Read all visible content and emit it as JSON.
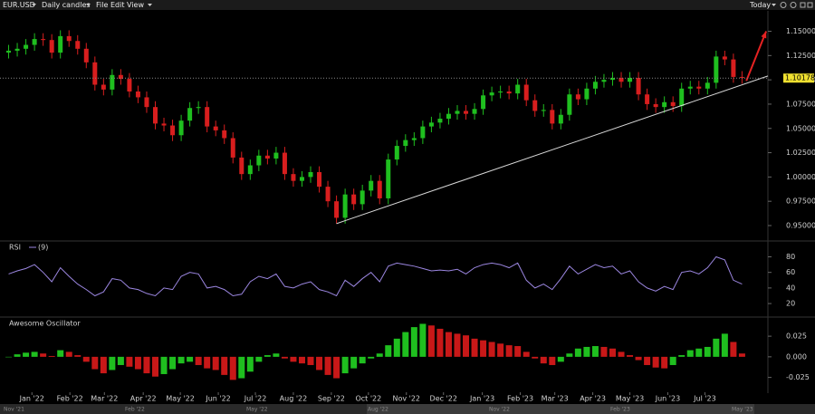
{
  "toolbar": {
    "symbol": "EUR.USD",
    "timeframe": "Daily candles",
    "menu": [
      "File",
      "Edit",
      "View"
    ],
    "today": "Today"
  },
  "chart_data": [
    {
      "type": "candlestick",
      "open": [
        1.128,
        1.13,
        1.132,
        1.136,
        1.142,
        1.141,
        1.128,
        1.145,
        1.14,
        1.132,
        1.118,
        1.095,
        1.09,
        1.105,
        1.101,
        1.088,
        1.082,
        1.072,
        1.055,
        1.053,
        1.043,
        1.058,
        1.071,
        1.072,
        1.052,
        1.048,
        1.04,
        1.02,
        1.003,
        1.012,
        1.022,
        1.019,
        1.025,
        1.003,
        0.996,
        1.0,
        1.005,
        0.99,
        0.975,
        0.958,
        0.982,
        0.972,
        0.986,
        0.996,
        0.978,
        1.018,
        1.032,
        1.038,
        1.04,
        1.052,
        1.056,
        1.06,
        1.065,
        1.068,
        1.065,
        1.07,
        1.084,
        1.087,
        1.088,
        1.086,
        1.095,
        1.079,
        1.068,
        1.069,
        1.055,
        1.064,
        1.085,
        1.08,
        1.091,
        1.098,
        1.1,
        1.102,
        1.098,
        1.102,
        1.085,
        1.075,
        1.072,
        1.077,
        1.073,
        1.091,
        1.093,
        1.091,
        1.097,
        1.124,
        1.121,
        1.103
      ],
      "high": [
        1.136,
        1.138,
        1.142,
        1.148,
        1.148,
        1.147,
        1.151,
        1.151,
        1.146,
        1.138,
        1.124,
        1.101,
        1.111,
        1.111,
        1.107,
        1.094,
        1.088,
        1.078,
        1.061,
        1.059,
        1.064,
        1.077,
        1.078,
        1.078,
        1.058,
        1.054,
        1.046,
        1.026,
        1.018,
        1.028,
        1.028,
        1.031,
        1.031,
        1.009,
        1.006,
        1.011,
        1.011,
        0.996,
        0.981,
        0.988,
        0.988,
        0.992,
        1.002,
        1.002,
        1.024,
        1.038,
        1.044,
        1.046,
        1.058,
        1.062,
        1.066,
        1.071,
        1.074,
        1.074,
        1.076,
        1.09,
        1.093,
        1.094,
        1.094,
        1.101,
        1.101,
        1.085,
        1.075,
        1.075,
        1.07,
        1.091,
        1.091,
        1.097,
        1.104,
        1.106,
        1.108,
        1.108,
        1.108,
        1.108,
        1.091,
        1.081,
        1.083,
        1.083,
        1.097,
        1.099,
        1.099,
        1.103,
        1.13,
        1.13,
        1.127,
        1.109
      ],
      "low": [
        1.122,
        1.124,
        1.126,
        1.13,
        1.135,
        1.122,
        1.122,
        1.134,
        1.126,
        1.112,
        1.089,
        1.084,
        1.084,
        1.095,
        1.082,
        1.076,
        1.066,
        1.049,
        1.047,
        1.037,
        1.037,
        1.052,
        1.065,
        1.046,
        1.042,
        1.034,
        1.014,
        0.997,
        0.997,
        1.006,
        1.013,
        1.013,
        0.997,
        0.99,
        0.99,
        0.994,
        0.984,
        0.969,
        0.952,
        0.952,
        0.966,
        0.966,
        0.98,
        0.972,
        0.972,
        1.012,
        1.026,
        1.032,
        1.034,
        1.046,
        1.05,
        1.054,
        1.059,
        1.059,
        1.059,
        1.064,
        1.078,
        1.081,
        1.08,
        1.08,
        1.073,
        1.062,
        1.062,
        1.049,
        1.049,
        1.058,
        1.074,
        1.074,
        1.085,
        1.092,
        1.094,
        1.092,
        1.092,
        1.079,
        1.069,
        1.066,
        1.066,
        1.067,
        1.067,
        1.085,
        1.085,
        1.085,
        1.091,
        1.115,
        1.097,
        1.096
      ],
      "close": [
        1.13,
        1.132,
        1.136,
        1.142,
        1.141,
        1.128,
        1.145,
        1.14,
        1.132,
        1.118,
        1.095,
        1.09,
        1.105,
        1.101,
        1.088,
        1.082,
        1.072,
        1.055,
        1.053,
        1.043,
        1.058,
        1.071,
        1.072,
        1.052,
        1.048,
        1.04,
        1.02,
        1.003,
        1.012,
        1.022,
        1.019,
        1.025,
        1.003,
        0.996,
        1.0,
        1.005,
        0.99,
        0.975,
        0.958,
        0.982,
        0.972,
        0.986,
        0.996,
        0.978,
        1.018,
        1.032,
        1.038,
        1.04,
        1.052,
        1.056,
        1.06,
        1.065,
        1.068,
        1.065,
        1.07,
        1.084,
        1.087,
        1.088,
        1.086,
        1.095,
        1.079,
        1.068,
        1.069,
        1.055,
        1.064,
        1.085,
        1.08,
        1.091,
        1.098,
        1.1,
        1.102,
        1.098,
        1.102,
        1.085,
        1.075,
        1.072,
        1.077,
        1.073,
        1.091,
        1.093,
        1.091,
        1.097,
        1.124,
        1.121,
        1.103,
        1.102
      ],
      "up_color": "#1fbf1f",
      "down_color": "#d81e1e",
      "xlim": [
        -1,
        88
      ],
      "ylim": [
        0.936,
        1.171
      ],
      "yticks": [
        {
          "value": 0.95,
          "label": "0.95000"
        },
        {
          "value": 0.975,
          "label": "0.97500"
        },
        {
          "value": 1.0,
          "label": "1.00000"
        },
        {
          "value": 1.025,
          "label": "1.02500"
        },
        {
          "value": 1.05,
          "label": "1.05000"
        },
        {
          "value": 1.075,
          "label": "1.07500"
        },
        {
          "value": 1.1,
          "label": "1.10000"
        },
        {
          "value": 1.125,
          "label": "1.12500"
        },
        {
          "value": 1.15,
          "label": "1.15000"
        }
      ],
      "last_price": 1.10178,
      "last_price_color": "#f0e030",
      "trendline": {
        "x": [
          38,
          88
        ],
        "y": [
          0.952,
          1.104
        ],
        "color": "#d8d8d8"
      },
      "arrow": {
        "x": [
          85.5,
          87.8
        ],
        "y": [
          1.099,
          1.15
        ],
        "color": "#e52222"
      }
    },
    {
      "type": "line",
      "title": "RSI",
      "legend_param": "(9)",
      "series": [
        {
          "name": "RSI",
          "color": "#9b86e0",
          "values": [
            58,
            62,
            65,
            70,
            60,
            48,
            66,
            55,
            45,
            38,
            30,
            35,
            52,
            50,
            40,
            38,
            33,
            30,
            40,
            38,
            55,
            60,
            58,
            40,
            42,
            38,
            30,
            32,
            48,
            55,
            52,
            58,
            42,
            40,
            45,
            48,
            38,
            35,
            30,
            50,
            42,
            52,
            60,
            48,
            68,
            72,
            70,
            68,
            65,
            62,
            63,
            62,
            64,
            58,
            66,
            70,
            72,
            70,
            66,
            72,
            50,
            40,
            45,
            38,
            52,
            68,
            58,
            64,
            70,
            66,
            68,
            58,
            62,
            48,
            40,
            36,
            42,
            38,
            60,
            62,
            58,
            66,
            80,
            76,
            50,
            45
          ]
        }
      ],
      "xlim": [
        -1,
        88
      ],
      "ylim": [
        5,
        98
      ],
      "yticks": [
        20,
        40,
        60,
        80
      ]
    },
    {
      "type": "bar",
      "title": "Awesome Oscillator",
      "values": [
        0.0,
        0.003,
        0.005,
        0.006,
        0.004,
        0.001,
        0.008,
        0.006,
        0.002,
        -0.006,
        -0.015,
        -0.02,
        -0.016,
        -0.01,
        -0.012,
        -0.015,
        -0.02,
        -0.024,
        -0.021,
        -0.015,
        -0.008,
        -0.006,
        -0.01,
        -0.014,
        -0.016,
        -0.022,
        -0.028,
        -0.026,
        -0.018,
        -0.006,
        0.002,
        0.004,
        -0.002,
        -0.006,
        -0.008,
        -0.01,
        -0.016,
        -0.022,
        -0.026,
        -0.02,
        -0.014,
        -0.008,
        -0.002,
        0.004,
        0.014,
        0.022,
        0.03,
        0.036,
        0.04,
        0.038,
        0.034,
        0.03,
        0.028,
        0.026,
        0.022,
        0.02,
        0.018,
        0.016,
        0.014,
        0.013,
        0.006,
        -0.002,
        -0.008,
        -0.01,
        -0.006,
        0.004,
        0.01,
        0.012,
        0.013,
        0.012,
        0.01,
        0.006,
        0.002,
        -0.004,
        -0.01,
        -0.013,
        -0.014,
        -0.01,
        0.002,
        0.008,
        0.01,
        0.012,
        0.022,
        0.028,
        0.018,
        0.004
      ],
      "rising_color": "#1fbf1f",
      "falling_color": "#c81818",
      "xlim": [
        -1,
        88
      ],
      "ylim": [
        -0.043,
        0.046
      ],
      "yticks": [
        -0.025,
        {
          "value": 0,
          "label": "0.000"
        },
        0.025
      ],
      "xticks": [
        {
          "value": 2.7,
          "label": "Jan '22"
        },
        {
          "value": 7.1,
          "label": "Feb '22"
        },
        {
          "value": 11.1,
          "label": "Mar '22"
        },
        {
          "value": 15.6,
          "label": "Apr '22"
        },
        {
          "value": 19.9,
          "label": "May '22"
        },
        {
          "value": 24.3,
          "label": "Jun '22"
        },
        {
          "value": 28.6,
          "label": "Jul '22"
        },
        {
          "value": 33.0,
          "label": "Aug '22"
        },
        {
          "value": 37.4,
          "label": "Sep '22"
        },
        {
          "value": 41.7,
          "label": "Oct '22"
        },
        {
          "value": 46.1,
          "label": "Nov '22"
        },
        {
          "value": 50.4,
          "label": "Dec '22"
        },
        {
          "value": 54.9,
          "label": "Jan '23"
        },
        {
          "value": 59.3,
          "label": "Feb '23"
        },
        {
          "value": 63.3,
          "label": "Mar '23"
        },
        {
          "value": 67.7,
          "label": "Apr '23"
        },
        {
          "value": 72.0,
          "label": "May '23"
        },
        {
          "value": 76.4,
          "label": "Jun '23"
        },
        {
          "value": 80.7,
          "label": "Jul '23"
        }
      ]
    }
  ],
  "navigator": {
    "labels": [
      "Nov '21",
      "Feb '22",
      "May '22",
      "Aug '22",
      "Nov '22",
      "Feb '23",
      "May '23"
    ]
  }
}
